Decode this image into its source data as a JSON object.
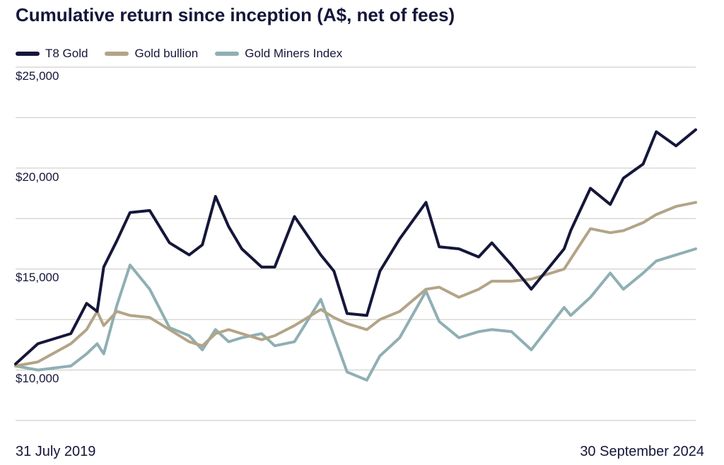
{
  "title": "Cumulative return since inception (A$, net of fees)",
  "chart_data": {
    "type": "line",
    "title": "Cumulative return since inception (A$, net of fees)",
    "x_start_label": "31 July 2019",
    "x_end_label": "30 September 2024",
    "yticks": [
      "$25,000",
      "$20,000",
      "$15,000",
      "$10,000"
    ],
    "ylim": [
      8000,
      25500
    ],
    "grid": true,
    "legend_position": "top-left",
    "x": [
      2019.58,
      2019.75,
      2020.0,
      2020.12,
      2020.2,
      2020.25,
      2020.35,
      2020.45,
      2020.6,
      2020.75,
      2020.9,
      2021.0,
      2021.1,
      2021.2,
      2021.3,
      2021.45,
      2021.55,
      2021.7,
      2021.9,
      2022.0,
      2022.1,
      2022.25,
      2022.35,
      2022.5,
      2022.7,
      2022.8,
      2022.95,
      2023.1,
      2023.2,
      2023.35,
      2023.5,
      2023.75,
      2023.8,
      2023.95,
      2024.1,
      2024.2,
      2024.35,
      2024.45,
      2024.6,
      2024.75
    ],
    "series": [
      {
        "name": "T8 Gold",
        "color": "#15163a",
        "values": [
          10800,
          11800,
          12300,
          13800,
          13400,
          15600,
          16900,
          18300,
          18400,
          16800,
          16200,
          16700,
          19100,
          17600,
          16500,
          15600,
          15600,
          18100,
          16200,
          15400,
          13300,
          13200,
          15400,
          17000,
          18800,
          16600,
          16500,
          16100,
          16800,
          15700,
          14500,
          16500,
          17400,
          19500,
          18700,
          20000,
          20700,
          22300,
          21600,
          22400
        ]
      },
      {
        "name": "Gold bullion",
        "color": "#b3a488",
        "values": [
          10700,
          10900,
          11800,
          12500,
          13400,
          12700,
          13400,
          13200,
          13100,
          12500,
          11900,
          11700,
          12300,
          12500,
          12300,
          12000,
          12200,
          12700,
          13500,
          13100,
          12800,
          12500,
          13000,
          13400,
          14500,
          14600,
          14100,
          14500,
          14900,
          14900,
          15000,
          15500,
          16000,
          17500,
          17300,
          17400,
          17800,
          18200,
          18600,
          18800
        ]
      },
      {
        "name": "Gold Miners Index",
        "color": "#8fafb3",
        "values": [
          10700,
          10500,
          10700,
          11300,
          11800,
          11300,
          13700,
          15700,
          14500,
          12600,
          12200,
          11500,
          12500,
          11900,
          12100,
          12300,
          11700,
          11900,
          14000,
          12200,
          10400,
          10000,
          11200,
          12100,
          14400,
          12900,
          12100,
          12400,
          12500,
          12400,
          11500,
          13600,
          13200,
          14100,
          15300,
          14500,
          15300,
          15900,
          16200,
          16500
        ]
      }
    ]
  }
}
